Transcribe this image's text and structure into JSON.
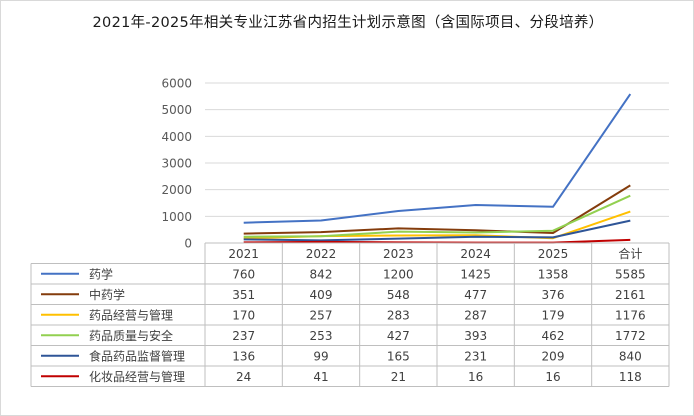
{
  "chart_data": {
    "type": "line",
    "title": "2021年-2025年相关专业江苏省内招生计划示意图（含国际项目、分段培养）",
    "categories": [
      "2021",
      "2022",
      "2023",
      "2024",
      "2025",
      "合计"
    ],
    "ylim": [
      0,
      6000
    ],
    "yticks": [
      "0",
      "1000",
      "2000",
      "3000",
      "4000",
      "5000",
      "6000"
    ],
    "grid": true,
    "legend": "data-table",
    "series": [
      {
        "name": "药学",
        "color": "#4472c4",
        "values": [
          760,
          842,
          1200,
          1425,
          1358,
          5585
        ]
      },
      {
        "name": "中药学",
        "color": "#843c0c",
        "values": [
          351,
          409,
          548,
          477,
          376,
          2161
        ]
      },
      {
        "name": "药品经营与管理",
        "color": "#ffc000",
        "values": [
          170,
          257,
          283,
          287,
          179,
          1176
        ]
      },
      {
        "name": "药品质量与安全",
        "color": "#92d050",
        "values": [
          237,
          253,
          427,
          393,
          462,
          1772
        ]
      },
      {
        "name": "食品药品监督管理",
        "color": "#2f5597",
        "values": [
          136,
          99,
          165,
          231,
          209,
          840
        ]
      },
      {
        "name": "化妆品经营与管理",
        "color": "#c00000",
        "values": [
          24,
          41,
          21,
          16,
          16,
          118
        ]
      }
    ]
  }
}
